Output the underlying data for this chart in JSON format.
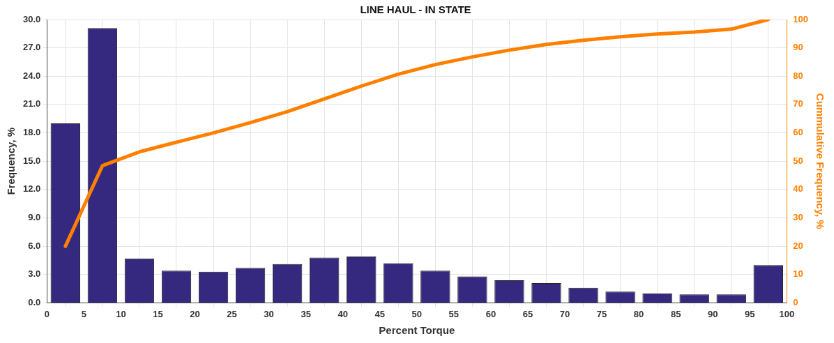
{
  "chart_data": {
    "type": "bar",
    "title": "LINE HAUL - IN STATE",
    "xlabel": "Percent Torque",
    "ylabel": "Frequency, %",
    "y2label": "Cummulative Frequency, %",
    "x": [
      2.5,
      7.5,
      12.5,
      17.5,
      22.5,
      27.5,
      32.5,
      37.5,
      42.5,
      47.5,
      52.5,
      57.5,
      62.5,
      67.5,
      72.5,
      77.5,
      82.5,
      87.5,
      92.5,
      97.5
    ],
    "series": [
      {
        "color": "#35297f",
        "values": [
          19.0,
          29.1,
          4.7,
          3.4,
          3.3,
          3.7,
          4.1,
          4.8,
          4.9,
          4.2,
          3.4,
          2.8,
          2.4,
          2.1,
          1.6,
          1.2,
          1.0,
          0.9,
          0.9,
          4.0
        ]
      },
      {
        "type": "line",
        "axis": "y2",
        "color": "#ff8000",
        "values": [
          20,
          48.4,
          53.3,
          56.7,
          60,
          63.6,
          67.5,
          72,
          76.5,
          80.7,
          84.1,
          86.8,
          89.2,
          91.2,
          92.7,
          93.9,
          94.9,
          95.6,
          96.6,
          100
        ]
      }
    ],
    "xlim": [
      0,
      100
    ],
    "xticks": [
      0,
      5,
      10,
      15,
      20,
      25,
      30,
      35,
      40,
      45,
      50,
      55,
      60,
      65,
      70,
      75,
      80,
      85,
      90,
      95,
      100
    ],
    "ylim": [
      0,
      30
    ],
    "yticks": [
      {
        "value": 0,
        "label": "0.0"
      },
      {
        "value": 3,
        "label": "3.0"
      },
      {
        "value": 6,
        "label": "6.0"
      },
      {
        "value": 9,
        "label": "9.0"
      },
      {
        "value": 12,
        "label": "12.0"
      },
      {
        "value": 15,
        "label": "15.0"
      },
      {
        "value": 18,
        "label": "18.0"
      },
      {
        "value": 21,
        "label": "21.0"
      },
      {
        "value": 24,
        "label": "24.0"
      },
      {
        "value": 27,
        "label": "27.0"
      },
      {
        "value": 30,
        "label": "30.0"
      }
    ],
    "y2lim": [
      0,
      100
    ],
    "y2ticks": [
      0,
      10,
      20,
      30,
      40,
      50,
      60,
      70,
      80,
      90,
      100
    ],
    "grid": true,
    "legend": false,
    "marker": "none",
    "line_style": "solid"
  }
}
